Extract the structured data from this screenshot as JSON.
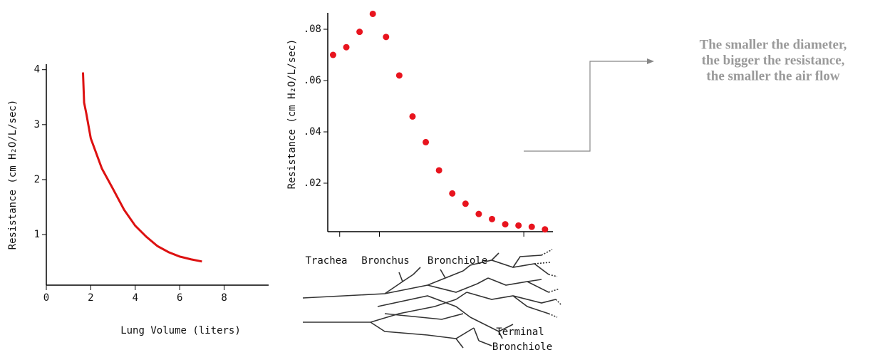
{
  "chart_data": [
    {
      "type": "line",
      "x_label": "Lung Volume (liters)",
      "y_label": "Resistance (cm H₂O/L/sec)",
      "x": [
        1.65,
        1.7,
        1.8,
        2,
        2.5,
        3,
        3.5,
        4,
        4.5,
        5,
        5.5,
        6,
        6.5,
        7
      ],
      "series": [
        {
          "color": "#dd1111",
          "values": [
            3.95,
            3.4,
            3.2,
            2.75,
            2.2,
            1.83,
            1.45,
            1.16,
            0.96,
            0.79,
            0.68,
            0.6,
            0.55,
            0.51
          ]
        }
      ],
      "xlim": [
        0,
        10
      ],
      "xticks": [
        0,
        2,
        4,
        6,
        8
      ],
      "ylim": [
        0.08,
        4.1
      ],
      "yticks": [
        1,
        2,
        3,
        4
      ]
    },
    {
      "type": "scatter",
      "y_label": "Resistance (cm H₂O/L/sec)",
      "x": [
        0,
        1,
        2,
        3,
        4,
        5,
        6,
        7,
        8,
        9,
        10,
        11,
        12,
        13,
        14,
        15,
        16
      ],
      "series": [
        {
          "color": "#e8141e",
          "values": [
            0.07,
            0.073,
            0.079,
            0.086,
            0.077,
            0.062,
            0.046,
            0.036,
            0.025,
            0.016,
            0.012,
            0.008,
            0.006,
            0.004,
            0.0035,
            0.003,
            0.002
          ]
        }
      ],
      "xlim": [
        -0.4,
        16.6
      ],
      "xticks": [
        0.5,
        3.5,
        14.4
      ],
      "ylim": [
        0.0011,
        0.0864
      ],
      "yticks": [
        {
          "value": 0.02,
          "label": ".02"
        },
        {
          "value": 0.04,
          "label": ".04"
        },
        {
          "value": 0.06,
          "label": ".06"
        },
        {
          "value": 0.08,
          "label": ".08"
        }
      ],
      "annotations": [
        "Trachea",
        "Bronchus",
        "Bronchiole",
        "Terminal",
        "Bronchiole"
      ]
    }
  ],
  "note": {
    "lines": [
      "The smaller the diameter,",
      "the bigger the resistance,",
      "the smaller the air flow"
    ]
  }
}
